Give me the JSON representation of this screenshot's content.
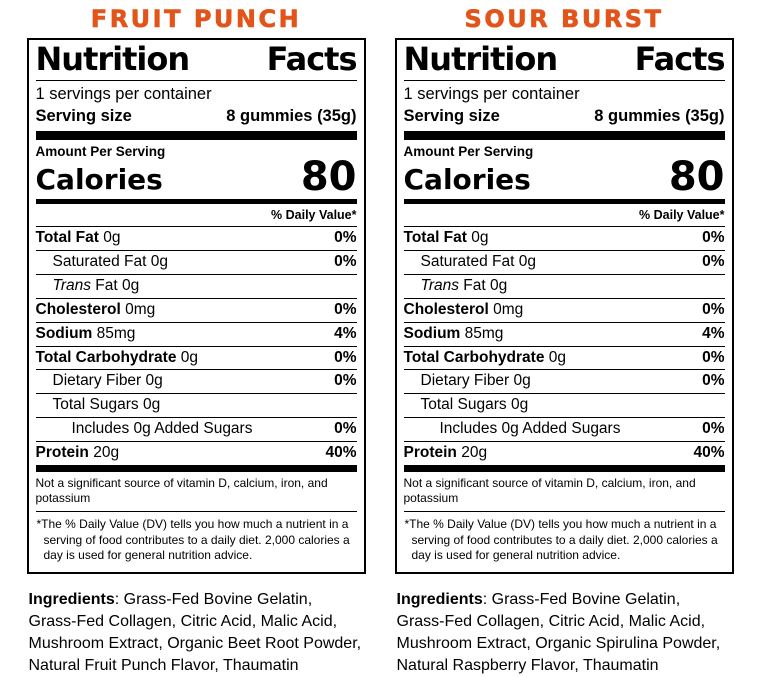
{
  "theme": {
    "accent_color": "#E2541A"
  },
  "labels": [
    {
      "flavor": "FRUIT PUNCH",
      "ingredients_label": "Ingredients",
      "ingredients_text": ": Grass-Fed Bovine Gelatin, Grass-Fed Collagen, Citric Acid, Malic Acid, Mushroom Extract, Organic Beet Root Powder, Natural Fruit Punch Flavor, Thaumatin"
    },
    {
      "flavor": "SOUR BURST",
      "ingredients_label": "Ingredients",
      "ingredients_text": ": Grass-Fed Bovine Gelatin, Grass-Fed Collagen, Citric Acid, Malic Acid, Mushroom Extract, Organic Spirulina Powder, Natural Raspberry Flavor, Thaumatin"
    }
  ],
  "nutrition": {
    "title": "Nutrition Facts",
    "servings_per_container": "1 servings per container",
    "serving_size_label": "Serving size",
    "serving_size_value": "8 gummies (35g)",
    "amount_per_serving": "Amount Per Serving",
    "calories_label": "Calories",
    "calories_value": "80",
    "daily_value_header": "% Daily Value*",
    "rows": [
      {
        "b": "Total Fat",
        "i": "",
        "r": " 0g",
        "dv": "0%"
      },
      {
        "b": "",
        "i": "",
        "r": "Saturated Fat 0g",
        "dv": "0%"
      },
      {
        "b": "",
        "i": "Trans",
        "r": " Fat 0g",
        "dv": ""
      },
      {
        "b": "Cholesterol",
        "i": "",
        "r": " 0mg",
        "dv": "0%"
      },
      {
        "b": "Sodium",
        "i": "",
        "r": " 85mg",
        "dv": "4%"
      },
      {
        "b": "Total Carbohydrate",
        "i": "",
        "r": " 0g",
        "dv": "0%"
      },
      {
        "b": "",
        "i": "",
        "r": "Dietary Fiber 0g",
        "dv": "0%"
      },
      {
        "b": "",
        "i": "",
        "r": "Total Sugars 0g",
        "dv": ""
      },
      {
        "b": "",
        "i": "",
        "r": "Includes 0g Added Sugars",
        "dv": "0%"
      },
      {
        "b": "Protein",
        "i": "",
        "r": " 20g",
        "dv": "40%"
      }
    ],
    "not_significant": "Not a significant source of vitamin D, calcium, iron, and potassium",
    "footnote": "*The % Daily Value (DV) tells you how much a nutrient in a serving of food contributes to a daily diet. 2,000 calories a day is used for general nutrition advice."
  }
}
